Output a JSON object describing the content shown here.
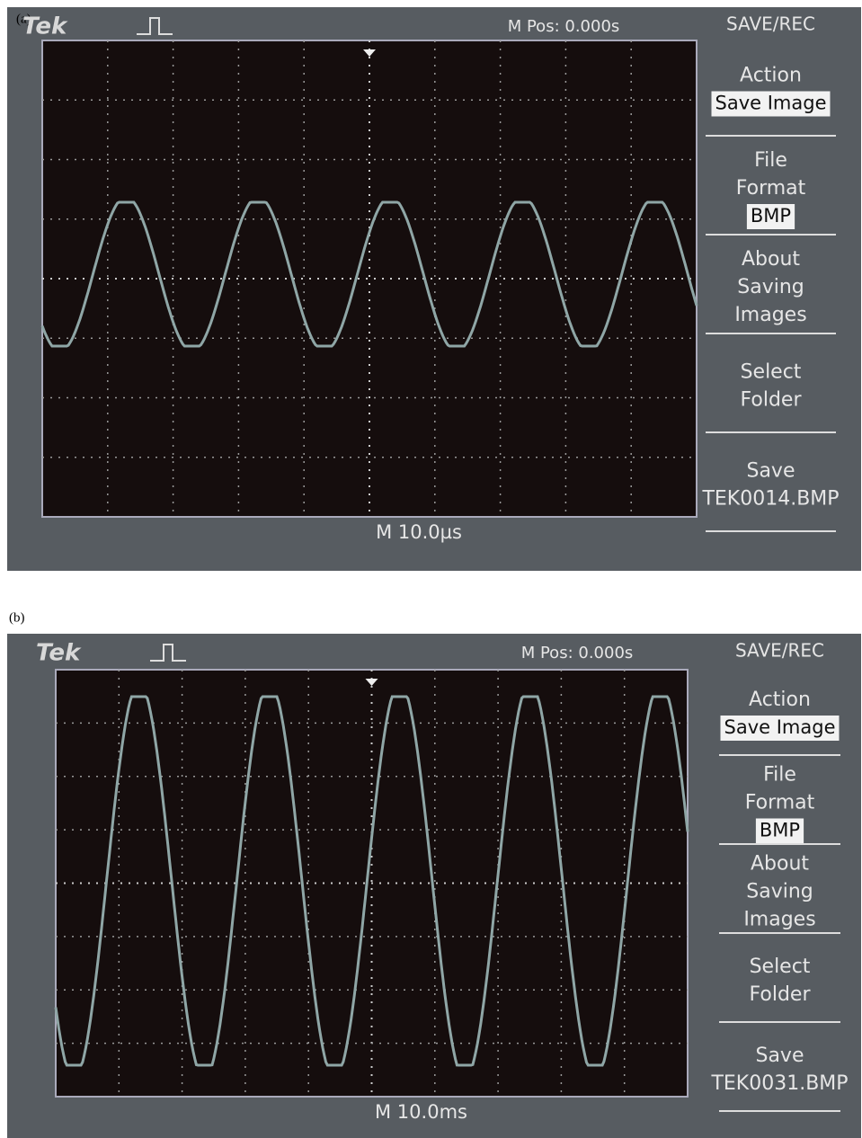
{
  "panels": [
    {
      "label": "(a)",
      "brand": "Tek",
      "position": "M Pos: 0.000s",
      "menu_title": "SAVE/REC",
      "menu": [
        {
          "lines": [
            "Action"
          ],
          "value": "Save Image"
        },
        {
          "lines": [
            "File",
            "Format"
          ],
          "value": "BMP"
        },
        {
          "lines": [
            "About",
            "Saving",
            "Images"
          ]
        },
        {
          "lines": [
            "Select",
            "Folder"
          ]
        },
        {
          "lines": [
            "Save",
            "TEK0014.BMP"
          ]
        }
      ],
      "timebase": "M 10.0µs"
    },
    {
      "label": "(b)",
      "brand": "Tek",
      "position": "M Pos: 0.000s",
      "menu_title": "SAVE/REC",
      "menu": [
        {
          "lines": [
            "Action"
          ],
          "value": "Save Image"
        },
        {
          "lines": [
            "File",
            "Format"
          ],
          "value": "BMP"
        },
        {
          "lines": [
            "About",
            "Saving",
            "Images"
          ]
        },
        {
          "lines": [
            "Select",
            "Folder"
          ]
        },
        {
          "lines": [
            "Save",
            "TEK0031.BMP"
          ]
        }
      ],
      "timebase": "M 10.0ms"
    }
  ]
}
